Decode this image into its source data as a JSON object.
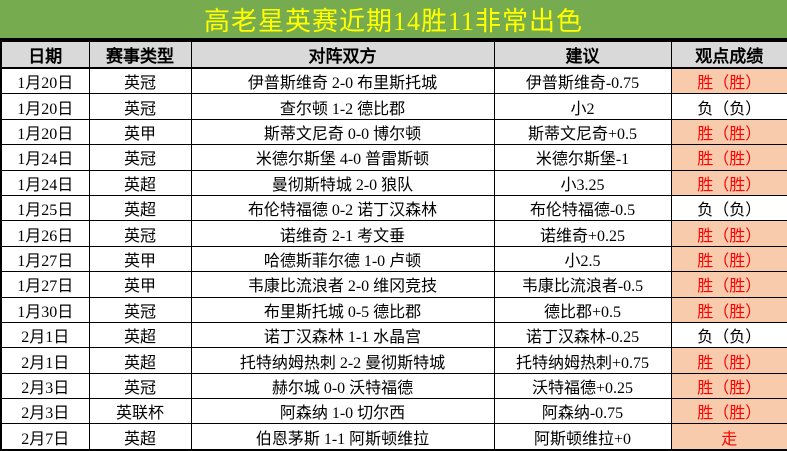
{
  "title": {
    "text": "高老星英赛近期14胜11非常出色"
  },
  "colors": {
    "title_bg": "#77AB4F",
    "title_text": "#FFFF00",
    "header_bg": "#D9D9D9",
    "win_bg": "#F8CBAD",
    "win_text": "#FF0000",
    "loss_text": "#000000",
    "border": "#000000"
  },
  "table": {
    "headers": [
      "日期",
      "赛事类型",
      "对阵双方",
      "建议",
      "观点成绩"
    ],
    "rows": [
      {
        "date": "1月20日",
        "league": "英冠",
        "match": "伊普斯维奇 2-0 布里斯托城",
        "advice": "伊普斯维奇-0.75",
        "result": "胜（胜）",
        "outcome": "win"
      },
      {
        "date": "1月20日",
        "league": "英冠",
        "match": "查尔顿 1-2 德比郡",
        "advice": "小2",
        "result": "负（负）",
        "outcome": "loss"
      },
      {
        "date": "1月20日",
        "league": "英甲",
        "match": "斯蒂文尼奇 0-0 博尔顿",
        "advice": "斯蒂文尼奇+0.5",
        "result": "胜（胜）",
        "outcome": "win"
      },
      {
        "date": "1月24日",
        "league": "英冠",
        "match": "米德尔斯堡 4-0 普雷斯顿",
        "advice": "米德尔斯堡-1",
        "result": "胜（胜）",
        "outcome": "win"
      },
      {
        "date": "1月24日",
        "league": "英超",
        "match": "曼彻斯特城 2-0 狼队",
        "advice": "小3.25",
        "result": "胜（胜）",
        "outcome": "win"
      },
      {
        "date": "1月25日",
        "league": "英超",
        "match": "布伦特福德 0-2 诺丁汉森林",
        "advice": "布伦特福德-0.5",
        "result": "负（负）",
        "outcome": "loss"
      },
      {
        "date": "1月26日",
        "league": "英冠",
        "match": "诺维奇 2-1 考文垂",
        "advice": "诺维奇+0.25",
        "result": "胜（胜）",
        "outcome": "win"
      },
      {
        "date": "1月27日",
        "league": "英甲",
        "match": "哈德斯菲尔德 1-0 卢顿",
        "advice": "小2.5",
        "result": "胜（胜）",
        "outcome": "win"
      },
      {
        "date": "1月27日",
        "league": "英甲",
        "match": "韦康比流浪者 2-0 维冈竞技",
        "advice": "韦康比流浪者-0.5",
        "result": "胜（胜）",
        "outcome": "win"
      },
      {
        "date": "1月30日",
        "league": "英冠",
        "match": "布里斯托城 0-5 德比郡",
        "advice": "德比郡+0.5",
        "result": "胜（胜）",
        "outcome": "win"
      },
      {
        "date": "2月1日",
        "league": "英超",
        "match": "诺丁汉森林 1-1 水晶宫",
        "advice": "诺丁汉森林-0.25",
        "result": "负（负）",
        "outcome": "loss"
      },
      {
        "date": "2月1日",
        "league": "英超",
        "match": "托特纳姆热刺 2-2 曼彻斯特城",
        "advice": "托特纳姆热刺+0.75",
        "result": "胜（胜）",
        "outcome": "win"
      },
      {
        "date": "2月3日",
        "league": "英冠",
        "match": "赫尔城 0-0 沃特福德",
        "advice": "沃特福德+0.25",
        "result": "胜（胜）",
        "outcome": "win"
      },
      {
        "date": "2月3日",
        "league": "英联杯",
        "match": "阿森纳 1-0 切尔西",
        "advice": "阿森纳-0.75",
        "result": "胜（胜）",
        "outcome": "win"
      },
      {
        "date": "2月7日",
        "league": "英超",
        "match": "伯恩茅斯 1-1 阿斯顿维拉",
        "advice": "阿斯顿维拉+0",
        "result": "走",
        "outcome": "push"
      }
    ]
  }
}
